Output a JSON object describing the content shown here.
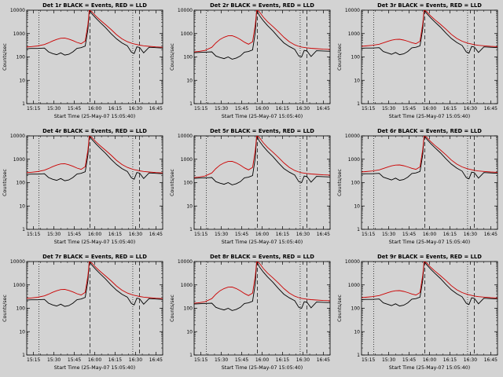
{
  "page": {
    "background": "#d3d3d3",
    "foreground": "#000000"
  },
  "chart_data": {
    "type": "line",
    "layout": {
      "rows": 3,
      "cols": 3
    },
    "legend_note": "BLACK = Events, RED = LLD",
    "colors": {
      "events": "#000000",
      "lld": "#cc0000"
    },
    "xlabel": "Start Time (25-May-07 15:05:40)",
    "ylabel": "Counts/sec",
    "y_scale": "log",
    "y_log_domain": [
      1,
      10000
    ],
    "y_ticks": [
      {
        "v": 1,
        "label": "1"
      },
      {
        "v": 10,
        "label": "10"
      },
      {
        "v": 100,
        "label": "100"
      },
      {
        "v": 1000,
        "label": "1000"
      },
      {
        "v": 10000,
        "label": "10000"
      }
    ],
    "x_domain_minutes_after_1500": [
      10,
      110
    ],
    "x_ticks": [
      {
        "t": 15,
        "label": "15:15"
      },
      {
        "t": 30,
        "label": "15:30"
      },
      {
        "t": 45,
        "label": "15:45"
      },
      {
        "t": 60,
        "label": "16:00"
      },
      {
        "t": 75,
        "label": "16:15"
      },
      {
        "t": 90,
        "label": "16:30"
      },
      {
        "t": 105,
        "label": "16:45"
      }
    ],
    "x_minor_step": 5,
    "vlines": [
      {
        "t": 19,
        "style": "dotted"
      },
      {
        "t": 56.5,
        "style": "dashed"
      },
      {
        "t": 88,
        "style": "dotted"
      },
      {
        "t": 93,
        "style": "dashed"
      }
    ],
    "x_minutes": [
      8,
      13,
      18,
      23,
      26,
      29,
      32,
      35,
      38,
      41,
      44,
      47,
      50,
      53,
      55,
      56,
      58,
      61,
      64,
      68,
      72,
      76,
      80,
      84,
      87,
      89,
      91,
      93,
      96,
      100,
      105,
      110
    ],
    "panels": [
      {
        "title": "Det 1r BLACK = Events, RED = LLD",
        "black": [
          220,
          230,
          230,
          240,
          165,
          140,
          125,
          150,
          120,
          130,
          165,
          235,
          250,
          290,
          1500,
          10000,
          7000,
          4500,
          3000,
          1800,
          1000,
          600,
          400,
          300,
          160,
          140,
          270,
          255,
          150,
          260,
          250,
          240
        ],
        "red": [
          260,
          275,
          295,
          340,
          400,
          480,
          560,
          630,
          640,
          580,
          500,
          420,
          370,
          480,
          2500,
          10000,
          8500,
          5500,
          3800,
          2400,
          1500,
          900,
          600,
          450,
          390,
          360,
          340,
          320,
          300,
          285,
          270,
          260
        ]
      },
      {
        "title": "Det 2r BLACK = Events, RED = LLD",
        "black": [
          150,
          155,
          160,
          165,
          110,
          95,
          85,
          100,
          80,
          90,
          110,
          160,
          170,
          200,
          1200,
          10000,
          6000,
          3500,
          2200,
          1300,
          700,
          400,
          280,
          210,
          110,
          100,
          190,
          180,
          105,
          185,
          180,
          175
        ],
        "red": [
          160,
          170,
          190,
          260,
          400,
          560,
          700,
          800,
          810,
          700,
          560,
          430,
          350,
          450,
          2500,
          10000,
          8500,
          5000,
          3200,
          2000,
          1200,
          700,
          450,
          330,
          285,
          265,
          255,
          245,
          235,
          225,
          215,
          210
        ]
      },
      {
        "title": "Det 3r BLACK = Events, RED = LLD",
        "black": [
          230,
          240,
          240,
          250,
          170,
          150,
          130,
          155,
          125,
          135,
          170,
          245,
          260,
          300,
          1600,
          10000,
          7200,
          4600,
          3100,
          1900,
          1050,
          620,
          420,
          310,
          165,
          145,
          280,
          265,
          155,
          270,
          260,
          250
        ],
        "red": [
          280,
          295,
          315,
          350,
          400,
          460,
          520,
          560,
          570,
          530,
          470,
          410,
          370,
          470,
          2600,
          10000,
          8600,
          5600,
          3900,
          2500,
          1550,
          930,
          620,
          470,
          410,
          380,
          355,
          335,
          315,
          300,
          285,
          275
        ]
      },
      {
        "title": "Det 4r BLACK = Events, RED = LLD",
        "black": [
          220,
          230,
          230,
          240,
          165,
          140,
          125,
          150,
          120,
          130,
          165,
          235,
          250,
          290,
          1500,
          10000,
          7000,
          4500,
          3000,
          1800,
          1000,
          600,
          400,
          300,
          160,
          140,
          270,
          255,
          150,
          260,
          250,
          240
        ],
        "red": [
          260,
          275,
          295,
          340,
          400,
          480,
          560,
          630,
          640,
          580,
          500,
          420,
          370,
          480,
          2500,
          10000,
          8500,
          5500,
          3800,
          2400,
          1500,
          900,
          600,
          450,
          390,
          360,
          340,
          320,
          300,
          285,
          270,
          260
        ]
      },
      {
        "title": "Det 5r BLACK = Events, RED = LLD",
        "black": [
          150,
          155,
          160,
          165,
          110,
          95,
          85,
          100,
          80,
          90,
          110,
          160,
          170,
          200,
          1200,
          10000,
          6000,
          3500,
          2200,
          1300,
          700,
          400,
          280,
          210,
          110,
          100,
          190,
          180,
          105,
          185,
          180,
          175
        ],
        "red": [
          160,
          170,
          190,
          260,
          400,
          560,
          700,
          800,
          810,
          700,
          560,
          430,
          350,
          450,
          2500,
          10000,
          8500,
          5000,
          3200,
          2000,
          1200,
          700,
          450,
          330,
          285,
          265,
          255,
          245,
          235,
          225,
          215,
          210
        ]
      },
      {
        "title": "Det 6r BLACK = Events, RED = LLD",
        "black": [
          230,
          240,
          240,
          250,
          170,
          150,
          130,
          155,
          125,
          135,
          170,
          245,
          260,
          300,
          1600,
          10000,
          7200,
          4600,
          3100,
          1900,
          1050,
          620,
          420,
          310,
          165,
          145,
          280,
          265,
          155,
          270,
          260,
          250
        ],
        "red": [
          280,
          295,
          315,
          350,
          400,
          460,
          520,
          560,
          570,
          530,
          470,
          410,
          370,
          470,
          2600,
          10000,
          8600,
          5600,
          3900,
          2500,
          1550,
          930,
          620,
          470,
          410,
          380,
          355,
          335,
          315,
          300,
          285,
          275
        ]
      },
      {
        "title": "Det 7r BLACK = Events, RED = LLD",
        "black": [
          220,
          230,
          230,
          240,
          165,
          140,
          125,
          150,
          120,
          130,
          165,
          235,
          250,
          290,
          1500,
          10000,
          7000,
          4500,
          3000,
          1800,
          1000,
          600,
          400,
          300,
          160,
          140,
          270,
          255,
          150,
          260,
          250,
          240
        ],
        "red": [
          260,
          275,
          295,
          340,
          400,
          480,
          560,
          630,
          640,
          580,
          500,
          420,
          370,
          480,
          2500,
          10000,
          8500,
          5500,
          3800,
          2400,
          1500,
          900,
          600,
          450,
          390,
          360,
          340,
          320,
          300,
          285,
          270,
          260
        ]
      },
      {
        "title": "Det 8r BLACK = Events, RED = LLD",
        "black": [
          150,
          155,
          160,
          165,
          110,
          95,
          85,
          100,
          80,
          90,
          110,
          160,
          170,
          200,
          1200,
          10000,
          6000,
          3500,
          2200,
          1300,
          700,
          400,
          280,
          210,
          110,
          100,
          190,
          180,
          105,
          185,
          180,
          175
        ],
        "red": [
          160,
          170,
          190,
          260,
          400,
          560,
          700,
          800,
          810,
          700,
          560,
          430,
          350,
          450,
          2500,
          10000,
          8500,
          5000,
          3200,
          2000,
          1200,
          700,
          450,
          330,
          285,
          265,
          255,
          245,
          235,
          225,
          215,
          210
        ]
      },
      {
        "title": "Det 9r BLACK = Events, RED = LLD",
        "black": [
          230,
          240,
          240,
          250,
          170,
          150,
          130,
          155,
          125,
          135,
          170,
          245,
          260,
          300,
          1600,
          10000,
          7200,
          4600,
          3100,
          1900,
          1050,
          620,
          420,
          310,
          165,
          145,
          280,
          265,
          155,
          270,
          260,
          250
        ],
        "red": [
          280,
          295,
          315,
          350,
          400,
          460,
          520,
          560,
          570,
          530,
          470,
          410,
          370,
          470,
          2600,
          10000,
          8600,
          5600,
          3900,
          2500,
          1550,
          930,
          620,
          470,
          410,
          380,
          355,
          335,
          315,
          300,
          285,
          275
        ]
      }
    ]
  }
}
